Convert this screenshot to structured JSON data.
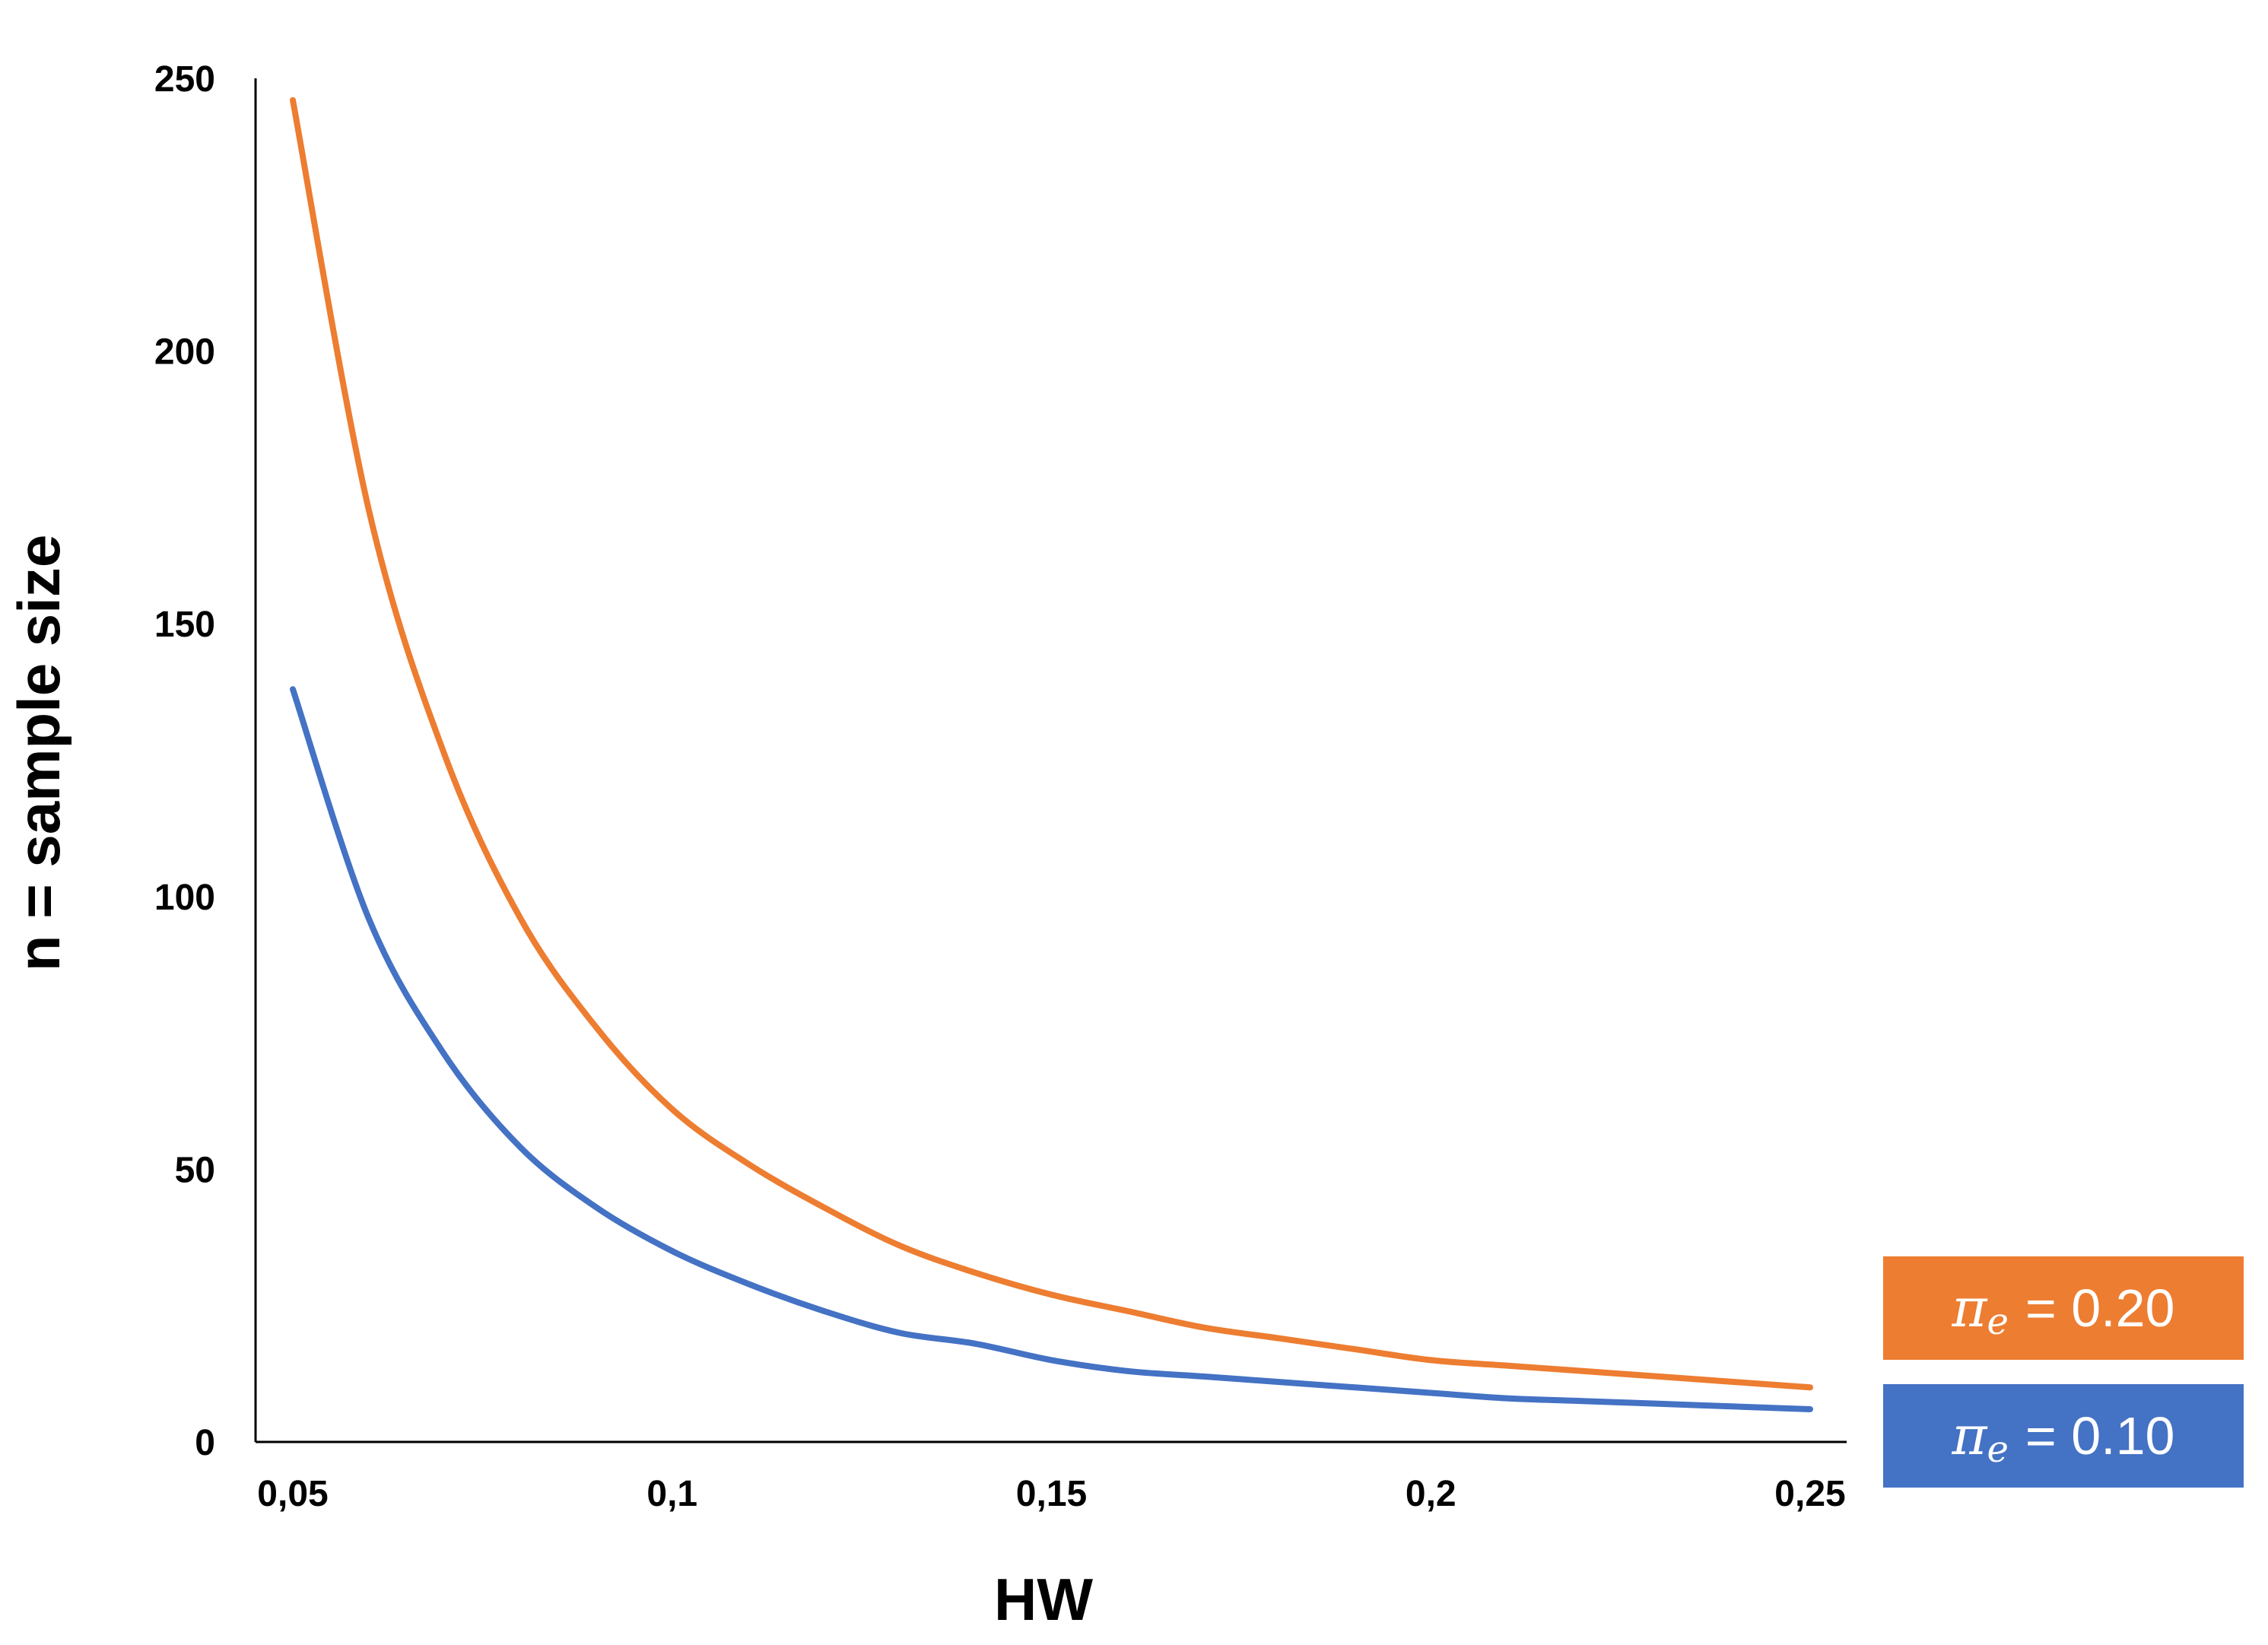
{
  "chart_data": {
    "type": "line",
    "xlabel": "HW",
    "ylabel": "n = sample size",
    "xlim": [
      0.05,
      0.25
    ],
    "ylim": [
      0,
      250
    ],
    "x_ticks": [
      "0,05",
      "0,1",
      "0,15",
      "0,2",
      "0,25"
    ],
    "y_ticks": [
      "0",
      "50",
      "100",
      "150",
      "200",
      "250"
    ],
    "grid": false,
    "legend_position": "bottom-right",
    "x": [
      0.05,
      0.06,
      0.07,
      0.08,
      0.09,
      0.1,
      0.11,
      0.12,
      0.13,
      0.14,
      0.15,
      0.16,
      0.17,
      0.18,
      0.19,
      0.2,
      0.21,
      0.22,
      0.23,
      0.24,
      0.25
    ],
    "series": [
      {
        "name": "π_e = 0.20",
        "symbol": "π",
        "subscript": "e",
        "value_text": "= 0.20",
        "color": "#ED7D31",
        "values": [
          246,
          171,
          126,
          96,
          76,
          61,
          51,
          43,
          36,
          31,
          27,
          24,
          21,
          19,
          17,
          15,
          14,
          13,
          12,
          11,
          10
        ]
      },
      {
        "name": "π_e = 0.10",
        "symbol": "π",
        "subscript": "e",
        "value_text": "= 0.10",
        "color": "#4472C4",
        "values": [
          138,
          96,
          71,
          54,
          43,
          35,
          29,
          24,
          20,
          18,
          15,
          13,
          12,
          11,
          10,
          9,
          8,
          7.5,
          7,
          6.5,
          6
        ]
      }
    ]
  }
}
